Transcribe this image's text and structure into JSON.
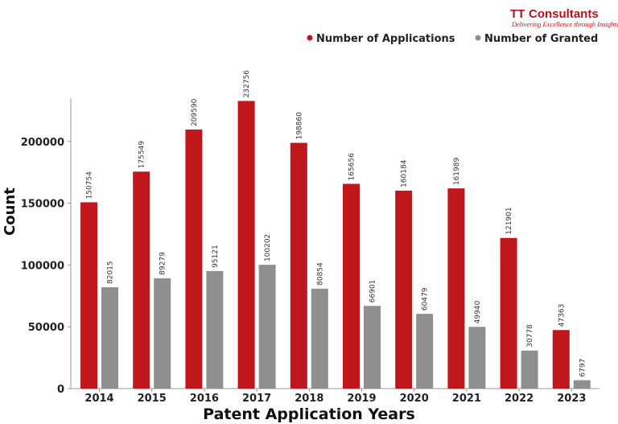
{
  "logo": {
    "mark": "TT",
    "name": "Consultants",
    "tagline": "Delivering Excellence through Insights"
  },
  "legend": {
    "position": "top-right",
    "items": [
      {
        "label": "Number of Applications",
        "color": "#c0171c"
      },
      {
        "label": "Number of Granted",
        "color": "#8f8f8f"
      }
    ]
  },
  "chart_data": {
    "type": "bar",
    "title": "",
    "xlabel": "Patent Application Years",
    "ylabel": "Count",
    "ylim": [
      0,
      235000
    ],
    "yticks": [
      0,
      50000,
      100000,
      150000,
      200000
    ],
    "grid": false,
    "categories": [
      "2014",
      "2015",
      "2016",
      "2017",
      "2018",
      "2019",
      "2020",
      "2021",
      "2022",
      "2023"
    ],
    "series": [
      {
        "name": "Number of Applications",
        "color": "#c0171c",
        "values": [
          150754,
          175549,
          209590,
          232756,
          198860,
          165656,
          160184,
          161989,
          121901,
          47363
        ]
      },
      {
        "name": "Number of Granted",
        "color": "#8f8f8f",
        "values": [
          82015,
          89279,
          95121,
          100202,
          80854,
          66901,
          60479,
          49940,
          30778,
          6797
        ]
      }
    ]
  }
}
